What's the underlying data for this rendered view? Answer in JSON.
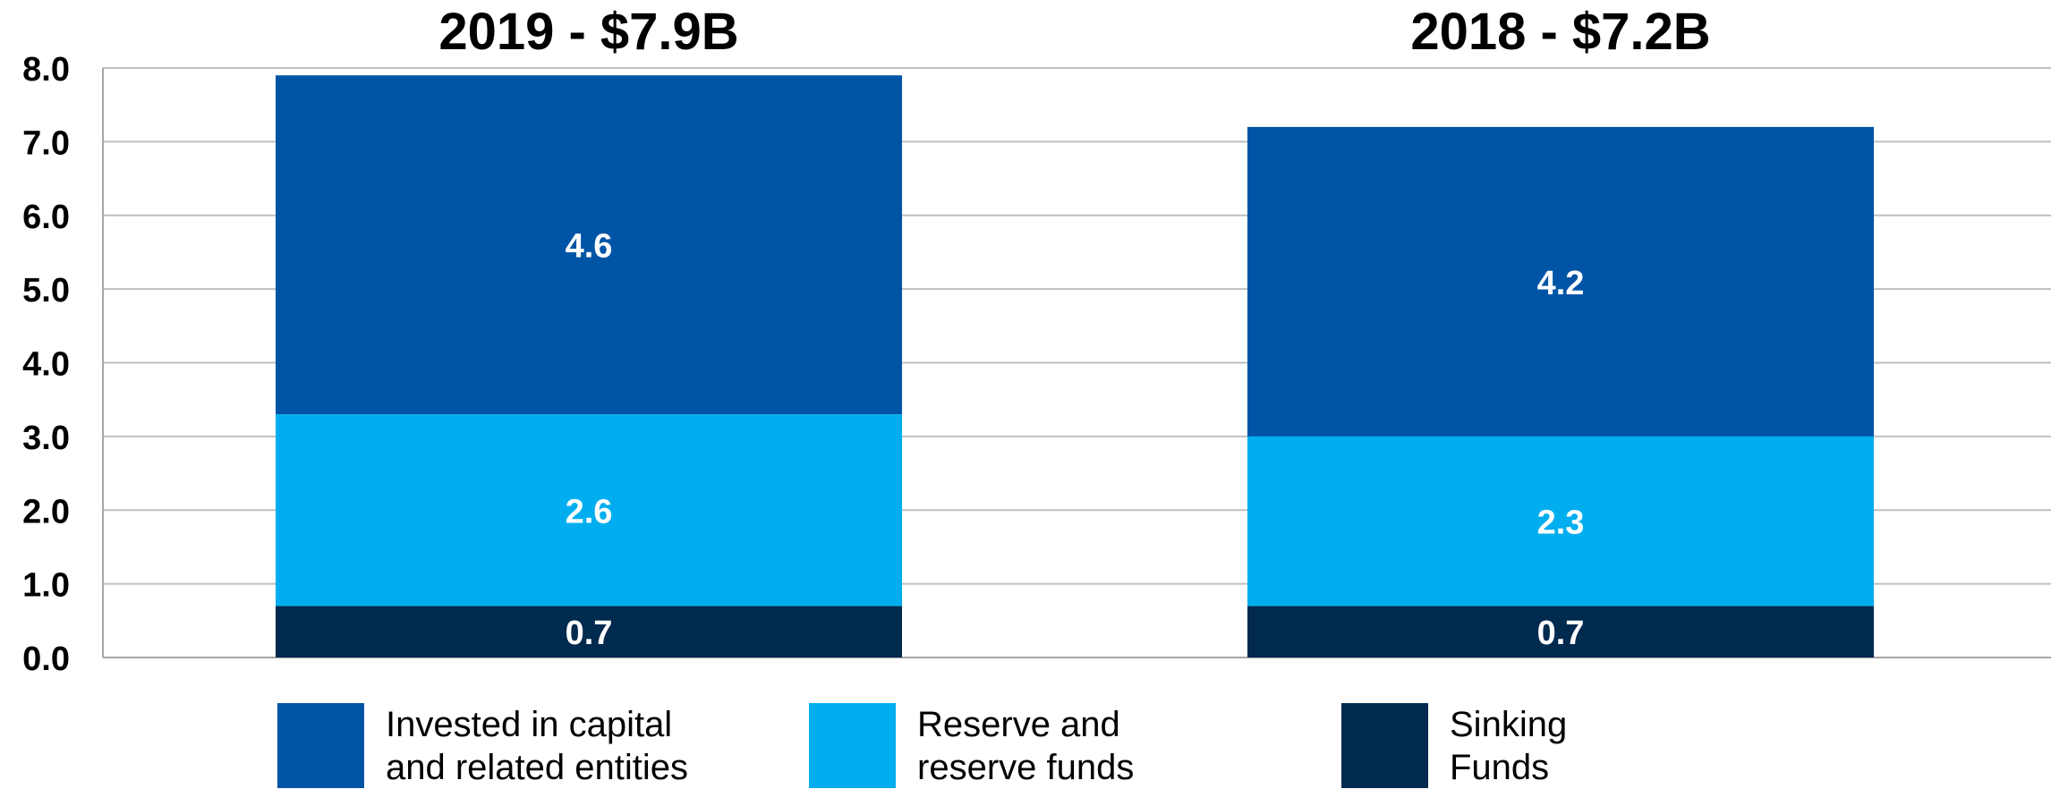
{
  "chart_data": {
    "type": "bar",
    "stacked": true,
    "categories": [
      "2019 - $7.9B",
      "2018 - $7.2B"
    ],
    "series": [
      {
        "name": "Sinking\nFunds",
        "values": [
          0.7,
          0.7
        ],
        "color": "#002a4e"
      },
      {
        "name": "Reserve and\nreserve funds",
        "values": [
          2.6,
          2.3
        ],
        "color": "#00aeef"
      },
      {
        "name": "Invested in capital\nand related entities",
        "values": [
          4.6,
          4.2
        ],
        "color": "#0054a6"
      }
    ],
    "totals": [
      7.9,
      7.2
    ],
    "data_labels": [
      [
        "0.7",
        "2.6",
        "4.6"
      ],
      [
        "0.7",
        "2.3",
        "4.2"
      ]
    ],
    "yticks": [
      "0.0",
      "1.0",
      "2.0",
      "3.0",
      "4.0",
      "5.0",
      "6.0",
      "7.0",
      "8.0"
    ],
    "ylim": [
      0,
      8
    ],
    "grid": true,
    "legend_position": "bottom",
    "legend_order": [
      2,
      1,
      0
    ],
    "title": "",
    "xlabel": "",
    "ylabel": ""
  }
}
